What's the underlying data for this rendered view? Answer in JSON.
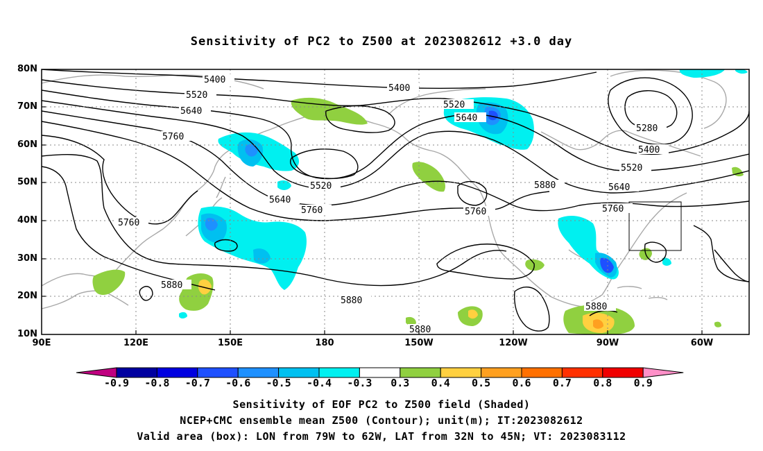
{
  "title": "Sensitivity of PC2 to Z500 at 2023082612 +3.0 day",
  "lat_labels": [
    "80N",
    "70N",
    "60N",
    "50N",
    "40N",
    "30N",
    "20N",
    "10N"
  ],
  "lon_labels": [
    "90E",
    "120E",
    "150E",
    "180",
    "150W",
    "120W",
    "90W",
    "60W"
  ],
  "contour_labels": [
    "5400",
    "5400",
    "5520",
    "5640",
    "5760",
    "5760",
    "5520",
    "5640",
    "5760",
    "5520",
    "5640",
    "5760",
    "5880",
    "5280",
    "5400",
    "5520",
    "5640",
    "5760",
    "5880",
    "5880",
    "5880",
    "5880"
  ],
  "colorbar": {
    "labels": [
      "-0.9",
      "-0.8",
      "-0.7",
      "-0.6",
      "-0.5",
      "-0.4",
      "-0.3",
      "0.3",
      "0.4",
      "0.5",
      "0.6",
      "0.7",
      "0.8",
      "0.9"
    ],
    "colors": [
      "#c00080",
      "#0000a0",
      "#0000e0",
      "#1e50ff",
      "#1e90ff",
      "#00c0f0",
      "#00f0f0",
      "#ffffff",
      "#90d040",
      "#ffd040",
      "#ffa020",
      "#ff7000",
      "#ff3000",
      "#f00000",
      "#ff90c8"
    ]
  },
  "caption": {
    "line1": "Sensitivity of EOF PC2 to Z500 field (Shaded)",
    "line2": "NCEP+CMC ensemble mean Z500 (Contour); unit(m); IT:2023082612",
    "line3": "Valid area (box): LON from 79W to 62W, LAT from 32N to 45N; VT: 2023083112"
  }
}
